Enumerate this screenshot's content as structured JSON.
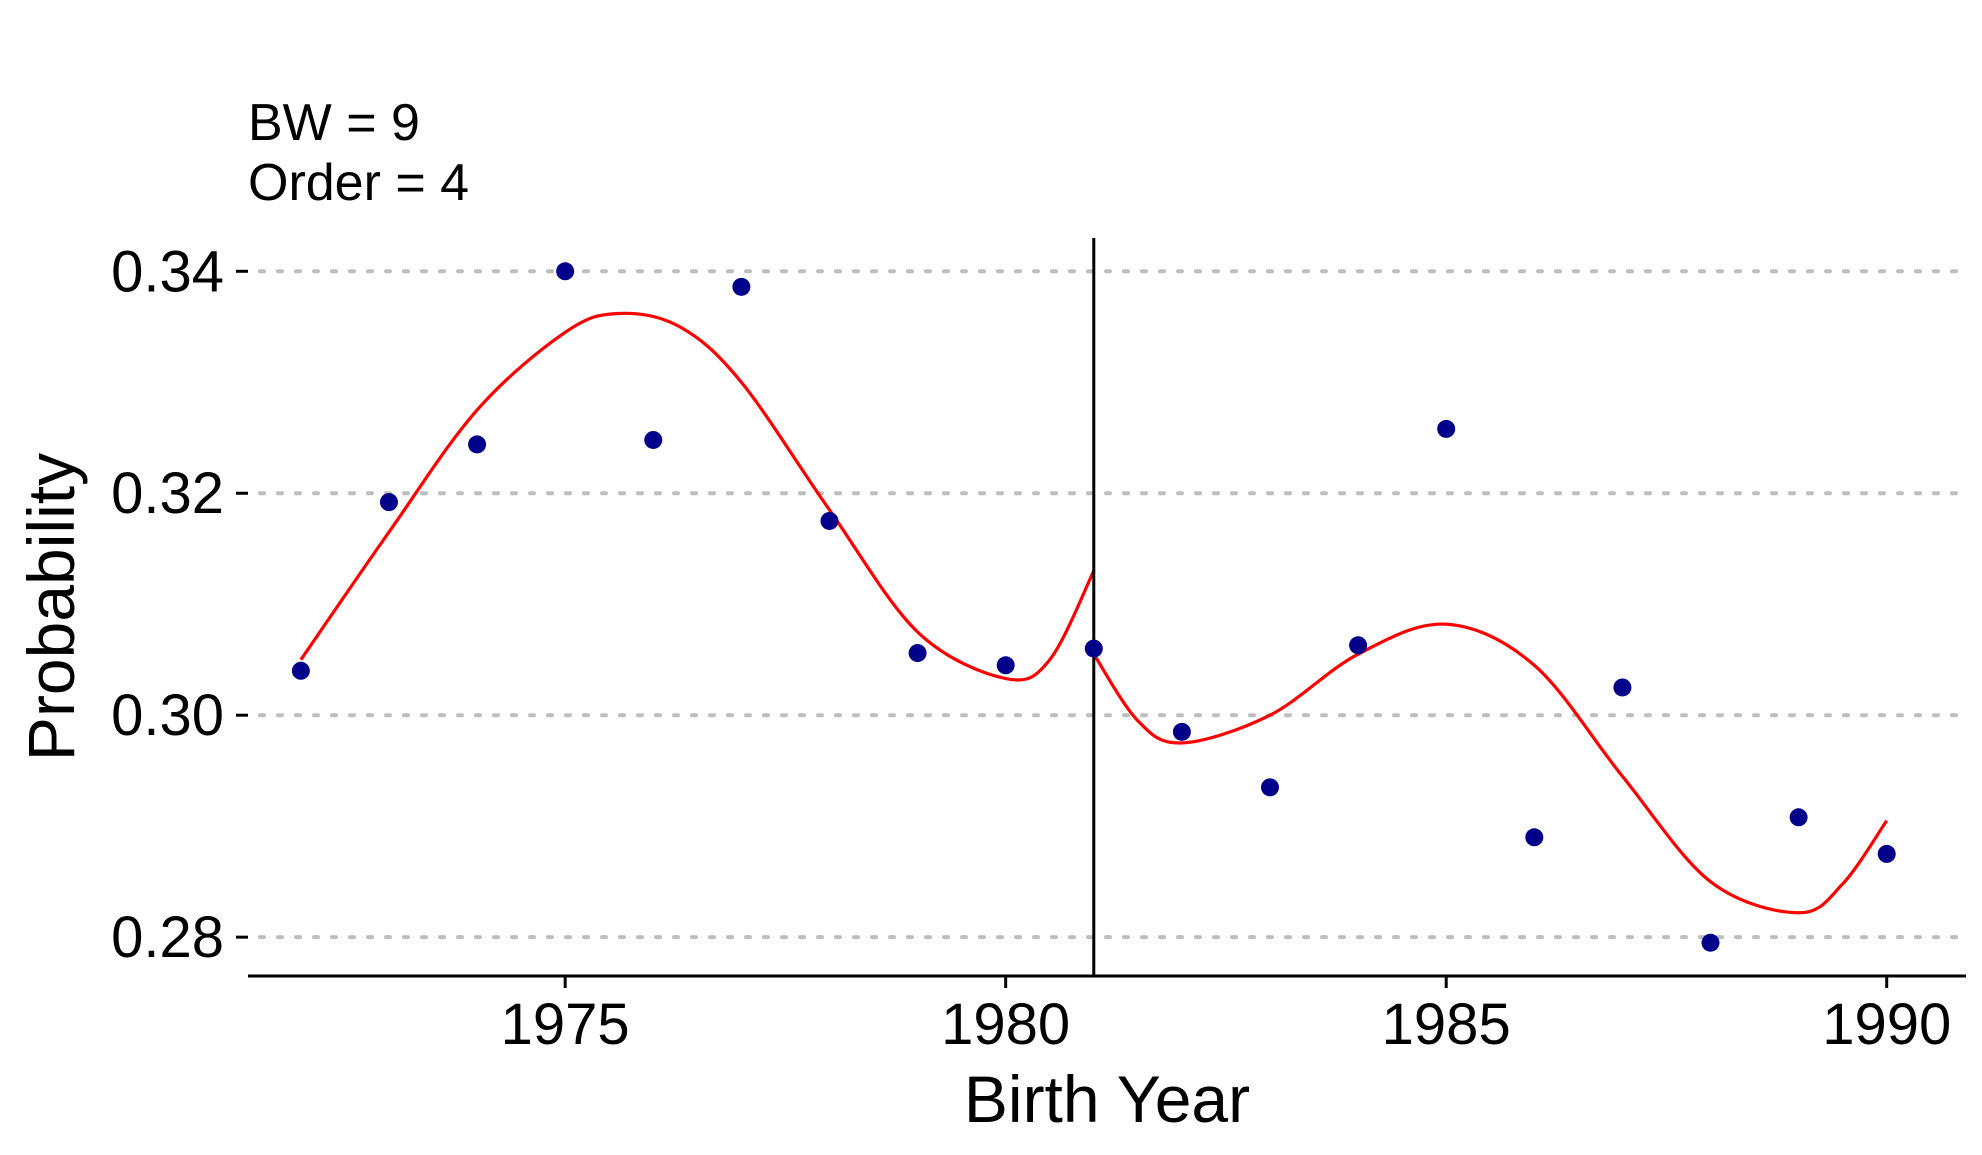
{
  "annotation": {
    "line1": "BW = 9",
    "line2": "Order = 4"
  },
  "chart_data": {
    "type": "scatter",
    "xlabel": "Birth Year",
    "ylabel": "Probability",
    "xlim": [
      1971.4,
      1990.9
    ],
    "ylim": [
      0.2765,
      0.343
    ],
    "x_ticks": [
      1975,
      1980,
      1985,
      1990
    ],
    "x_tick_labels": [
      "1975",
      "1980",
      "1985",
      "1990"
    ],
    "y_ticks": [
      0.28,
      0.3,
      0.32,
      0.34
    ],
    "y_tick_labels": [
      "0.28",
      "0.30",
      "0.32",
      "0.34"
    ],
    "grid": "horizontal dotted at y ticks",
    "cutoff": 1981,
    "points": [
      {
        "x": 1972,
        "y": 0.304
      },
      {
        "x": 1973,
        "y": 0.3192
      },
      {
        "x": 1974,
        "y": 0.3244
      },
      {
        "x": 1975,
        "y": 0.34
      },
      {
        "x": 1976,
        "y": 0.3248
      },
      {
        "x": 1977,
        "y": 0.3386
      },
      {
        "x": 1978,
        "y": 0.3175
      },
      {
        "x": 1979,
        "y": 0.3056
      },
      {
        "x": 1980,
        "y": 0.3045
      },
      {
        "x": 1981,
        "y": 0.306
      },
      {
        "x": 1982,
        "y": 0.2985
      },
      {
        "x": 1983,
        "y": 0.2935
      },
      {
        "x": 1984,
        "y": 0.3063
      },
      {
        "x": 1985,
        "y": 0.3258
      },
      {
        "x": 1986,
        "y": 0.289
      },
      {
        "x": 1987,
        "y": 0.3025
      },
      {
        "x": 1988,
        "y": 0.2795
      },
      {
        "x": 1989,
        "y": 0.2908
      },
      {
        "x": 1990,
        "y": 0.2875
      }
    ],
    "fit_left": [
      {
        "x": 1972.0,
        "y": 0.305
      },
      {
        "x": 1973.0,
        "y": 0.3165
      },
      {
        "x": 1974.0,
        "y": 0.3275
      },
      {
        "x": 1975.0,
        "y": 0.3345
      },
      {
        "x": 1975.6,
        "y": 0.3362
      },
      {
        "x": 1976.3,
        "y": 0.335
      },
      {
        "x": 1977.0,
        "y": 0.33
      },
      {
        "x": 1978.0,
        "y": 0.3185
      },
      {
        "x": 1979.0,
        "y": 0.3075
      },
      {
        "x": 1980.0,
        "y": 0.3033
      },
      {
        "x": 1980.5,
        "y": 0.305
      },
      {
        "x": 1981.0,
        "y": 0.313
      }
    ],
    "fit_right": [
      {
        "x": 1981.0,
        "y": 0.3055
      },
      {
        "x": 1981.5,
        "y": 0.2995
      },
      {
        "x": 1982.0,
        "y": 0.2975
      },
      {
        "x": 1983.0,
        "y": 0.3
      },
      {
        "x": 1984.0,
        "y": 0.3055
      },
      {
        "x": 1985.0,
        "y": 0.3082
      },
      {
        "x": 1986.0,
        "y": 0.3045
      },
      {
        "x": 1987.0,
        "y": 0.2945
      },
      {
        "x": 1988.0,
        "y": 0.285
      },
      {
        "x": 1989.0,
        "y": 0.2822
      },
      {
        "x": 1989.5,
        "y": 0.2848
      },
      {
        "x": 1990.0,
        "y": 0.2905
      }
    ],
    "colors": {
      "points": "#00008B",
      "fit": "#FF0000",
      "cutoff_line": "#000000",
      "grid": "#BEBEBE",
      "axis": "#000000"
    }
  }
}
